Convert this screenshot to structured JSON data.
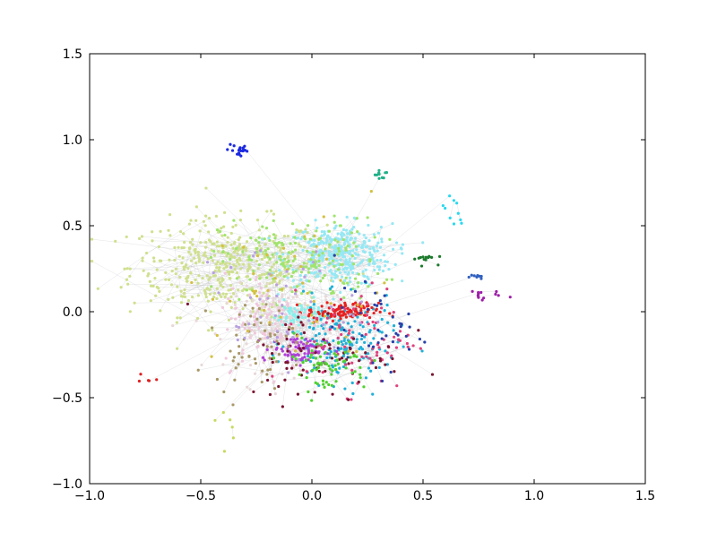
{
  "chart_data": {
    "type": "scatter",
    "title": "",
    "xlabel": "",
    "ylabel": "",
    "xlim": [
      -1.0,
      1.5
    ],
    "ylim": [
      -1.0,
      1.5
    ],
    "grid": false,
    "legend": "none",
    "x_ticks": [
      "−1.0",
      "−0.5",
      "0.0",
      "0.5",
      "1.0",
      "1.5"
    ],
    "x_tick_values": [
      -1.0,
      -0.5,
      0.0,
      0.5,
      1.0,
      1.5
    ],
    "y_ticks": [
      "−1.0",
      "−0.5",
      "0.0",
      "0.5",
      "1.0",
      "1.5"
    ],
    "y_tick_values": [
      -1.0,
      -0.5,
      0.0,
      0.5,
      1.0,
      1.5
    ],
    "series": [
      {
        "color": "#cfe08e",
        "center": [
          -0.38,
          0.26
        ],
        "spread": [
          0.22,
          0.14
        ],
        "count": 420
      },
      {
        "color": "#96e8f4",
        "center": [
          0.12,
          0.33
        ],
        "spread": [
          0.12,
          0.09
        ],
        "count": 360
      },
      {
        "color": "#a0e46c",
        "center": [
          -0.05,
          0.3
        ],
        "spread": [
          0.18,
          0.12
        ],
        "count": 180
      },
      {
        "color": "#e8d8d8",
        "center": [
          -0.1,
          -0.1
        ],
        "spread": [
          0.14,
          0.12
        ],
        "count": 200
      },
      {
        "color": "#88f0ec",
        "center": [
          -0.06,
          -0.02
        ],
        "spread": [
          0.06,
          0.04
        ],
        "count": 80
      },
      {
        "color": "#20b0d8",
        "center": [
          0.14,
          -0.18
        ],
        "spread": [
          0.12,
          0.12
        ],
        "count": 170
      },
      {
        "color": "#b040d8",
        "center": [
          -0.06,
          -0.22
        ],
        "spread": [
          0.06,
          0.04
        ],
        "count": 90
      },
      {
        "color": "#e82020",
        "center": [
          0.14,
          0.0
        ],
        "spread": [
          0.08,
          0.025
        ],
        "count": 110
      },
      {
        "color": "#e0407c",
        "center": [
          0.22,
          -0.15
        ],
        "spread": [
          0.12,
          0.15
        ],
        "count": 80
      },
      {
        "color": "#f0c8dc",
        "center": [
          -0.2,
          -0.05
        ],
        "spread": [
          0.1,
          0.14
        ],
        "count": 100
      },
      {
        "color": "#7a1430",
        "center": [
          0.05,
          -0.25
        ],
        "spread": [
          0.18,
          0.14
        ],
        "count": 70
      },
      {
        "color": "#50d030",
        "center": [
          0.06,
          -0.3
        ],
        "spread": [
          0.1,
          0.08
        ],
        "count": 70
      },
      {
        "color": "#a89868",
        "center": [
          -0.26,
          -0.18
        ],
        "spread": [
          0.09,
          0.12
        ],
        "count": 60
      },
      {
        "color": "#d4c040",
        "center": [
          -0.05,
          0.1
        ],
        "spread": [
          0.2,
          0.22
        ],
        "count": 50
      },
      {
        "color": "#b8a0e0",
        "center": [
          -0.15,
          0.05
        ],
        "spread": [
          0.18,
          0.18
        ],
        "count": 50
      },
      {
        "color": "#2840a8",
        "center": [
          0.3,
          -0.1
        ],
        "spread": [
          0.1,
          0.12
        ],
        "count": 40
      },
      {
        "color": "#1a28e0",
        "center": [
          -0.33,
          0.94
        ],
        "spread": [
          0.025,
          0.025
        ],
        "count": 20
      },
      {
        "color": "#20b088",
        "center": [
          0.31,
          0.8
        ],
        "spread": [
          0.015,
          0.02
        ],
        "count": 10
      },
      {
        "color": "#1c7a2c",
        "center": [
          0.5,
          0.31
        ],
        "spread": [
          0.03,
          0.015
        ],
        "count": 14
      },
      {
        "color": "#9c1ea8",
        "center": [
          0.76,
          0.1
        ],
        "spread": [
          0.04,
          0.015
        ],
        "count": 12
      },
      {
        "color": "#3060c0",
        "center": [
          0.72,
          0.2
        ],
        "spread": [
          0.04,
          0.01
        ],
        "count": 8
      },
      {
        "color": "#e02020",
        "center": [
          -0.75,
          -0.38
        ],
        "spread": [
          0.03,
          0.025
        ],
        "count": 5
      },
      {
        "color": "#28d8f0",
        "center": [
          0.64,
          0.58
        ],
        "spread": [
          0.05,
          0.06
        ],
        "count": 10
      },
      {
        "color": "#c8d860",
        "center": [
          -0.38,
          -0.65
        ],
        "spread": [
          0.04,
          0.07
        ],
        "count": 6
      }
    ],
    "colors": {
      "axes": "#000000",
      "edges": "#b8bcc0",
      "background": "#ffffff"
    }
  }
}
